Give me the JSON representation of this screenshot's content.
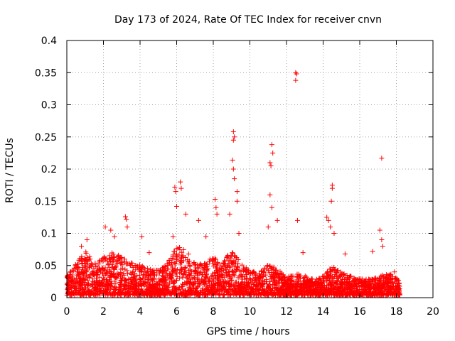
{
  "chart_data": {
    "type": "scatter",
    "title": "Day 173 of 2024, Rate Of TEC Index for receiver cnvn",
    "xlabel": "GPS time / hours",
    "ylabel": "ROTI / TECUs",
    "xlim": [
      0,
      20
    ],
    "ylim": [
      0,
      0.4
    ],
    "x_ticks": [
      "0",
      "2",
      "4",
      "6",
      "8",
      "10",
      "12",
      "14",
      "16",
      "18",
      "20"
    ],
    "y_ticks": [
      "0",
      "0.05",
      "0.1",
      "0.15",
      "0.2",
      "0.25",
      "0.3",
      "0.35",
      "0.4"
    ],
    "grid": true,
    "marker": "plus",
    "color": "#ff0000",
    "data_range_x": [
      0,
      18.2
    ],
    "baseline_density": {
      "description_of_values": "dense band of points between 0 and ~0.04 TECU across 0-18.2 h",
      "upper_envelope_y": [
        [
          0.0,
          0.03
        ],
        [
          0.5,
          0.05
        ],
        [
          1.0,
          0.07
        ],
        [
          1.5,
          0.05
        ],
        [
          2.0,
          0.06
        ],
        [
          2.5,
          0.07
        ],
        [
          3.0,
          0.06
        ],
        [
          3.5,
          0.05
        ],
        [
          4.0,
          0.05
        ],
        [
          4.5,
          0.04
        ],
        [
          5.0,
          0.04
        ],
        [
          5.5,
          0.05
        ],
        [
          6.0,
          0.08
        ],
        [
          6.5,
          0.07
        ],
        [
          7.0,
          0.05
        ],
        [
          7.5,
          0.05
        ],
        [
          8.0,
          0.06
        ],
        [
          8.5,
          0.05
        ],
        [
          9.0,
          0.07
        ],
        [
          9.5,
          0.05
        ],
        [
          10.0,
          0.04
        ],
        [
          10.5,
          0.035
        ],
        [
          11.0,
          0.05
        ],
        [
          11.5,
          0.04
        ],
        [
          12.0,
          0.03
        ],
        [
          12.5,
          0.035
        ],
        [
          13.0,
          0.03
        ],
        [
          13.5,
          0.025
        ],
        [
          14.0,
          0.03
        ],
        [
          14.5,
          0.045
        ],
        [
          15.0,
          0.035
        ],
        [
          15.5,
          0.03
        ],
        [
          16.0,
          0.025
        ],
        [
          16.5,
          0.025
        ],
        [
          17.0,
          0.03
        ],
        [
          17.5,
          0.035
        ],
        [
          18.0,
          0.03
        ],
        [
          18.2,
          0.02
        ]
      ]
    },
    "notable_points": [
      {
        "x": 0.8,
        "y": 0.08
      },
      {
        "x": 1.1,
        "y": 0.09
      },
      {
        "x": 2.1,
        "y": 0.11
      },
      {
        "x": 2.4,
        "y": 0.105
      },
      {
        "x": 2.6,
        "y": 0.095
      },
      {
        "x": 3.2,
        "y": 0.126
      },
      {
        "x": 3.25,
        "y": 0.122
      },
      {
        "x": 3.3,
        "y": 0.11
      },
      {
        "x": 4.1,
        "y": 0.095
      },
      {
        "x": 4.5,
        "y": 0.07
      },
      {
        "x": 5.8,
        "y": 0.095
      },
      {
        "x": 5.9,
        "y": 0.172
      },
      {
        "x": 5.95,
        "y": 0.165
      },
      {
        "x": 6.0,
        "y": 0.142
      },
      {
        "x": 6.2,
        "y": 0.18
      },
      {
        "x": 6.25,
        "y": 0.17
      },
      {
        "x": 6.5,
        "y": 0.13
      },
      {
        "x": 7.2,
        "y": 0.12
      },
      {
        "x": 7.6,
        "y": 0.095
      },
      {
        "x": 8.1,
        "y": 0.153
      },
      {
        "x": 8.15,
        "y": 0.14
      },
      {
        "x": 8.2,
        "y": 0.13
      },
      {
        "x": 8.9,
        "y": 0.13
      },
      {
        "x": 9.1,
        "y": 0.258
      },
      {
        "x": 9.15,
        "y": 0.25
      },
      {
        "x": 9.1,
        "y": 0.245
      },
      {
        "x": 9.05,
        "y": 0.214
      },
      {
        "x": 9.1,
        "y": 0.2
      },
      {
        "x": 9.15,
        "y": 0.185
      },
      {
        "x": 9.3,
        "y": 0.165
      },
      {
        "x": 9.3,
        "y": 0.15
      },
      {
        "x": 9.4,
        "y": 0.1
      },
      {
        "x": 11.1,
        "y": 0.21
      },
      {
        "x": 11.15,
        "y": 0.205
      },
      {
        "x": 11.2,
        "y": 0.238
      },
      {
        "x": 11.25,
        "y": 0.225
      },
      {
        "x": 11.1,
        "y": 0.16
      },
      {
        "x": 11.2,
        "y": 0.14
      },
      {
        "x": 11.0,
        "y": 0.11
      },
      {
        "x": 11.5,
        "y": 0.12
      },
      {
        "x": 12.5,
        "y": 0.35
      },
      {
        "x": 12.55,
        "y": 0.348
      },
      {
        "x": 12.5,
        "y": 0.338
      },
      {
        "x": 12.6,
        "y": 0.12
      },
      {
        "x": 12.9,
        "y": 0.07
      },
      {
        "x": 14.2,
        "y": 0.125
      },
      {
        "x": 14.3,
        "y": 0.12
      },
      {
        "x": 14.5,
        "y": 0.175
      },
      {
        "x": 14.5,
        "y": 0.17
      },
      {
        "x": 14.45,
        "y": 0.15
      },
      {
        "x": 14.4,
        "y": 0.11
      },
      {
        "x": 14.6,
        "y": 0.1
      },
      {
        "x": 15.2,
        "y": 0.068
      },
      {
        "x": 16.7,
        "y": 0.072
      },
      {
        "x": 17.2,
        "y": 0.217
      },
      {
        "x": 17.1,
        "y": 0.105
      },
      {
        "x": 17.2,
        "y": 0.09
      },
      {
        "x": 17.25,
        "y": 0.08
      },
      {
        "x": 17.9,
        "y": 0.04
      }
    ]
  }
}
